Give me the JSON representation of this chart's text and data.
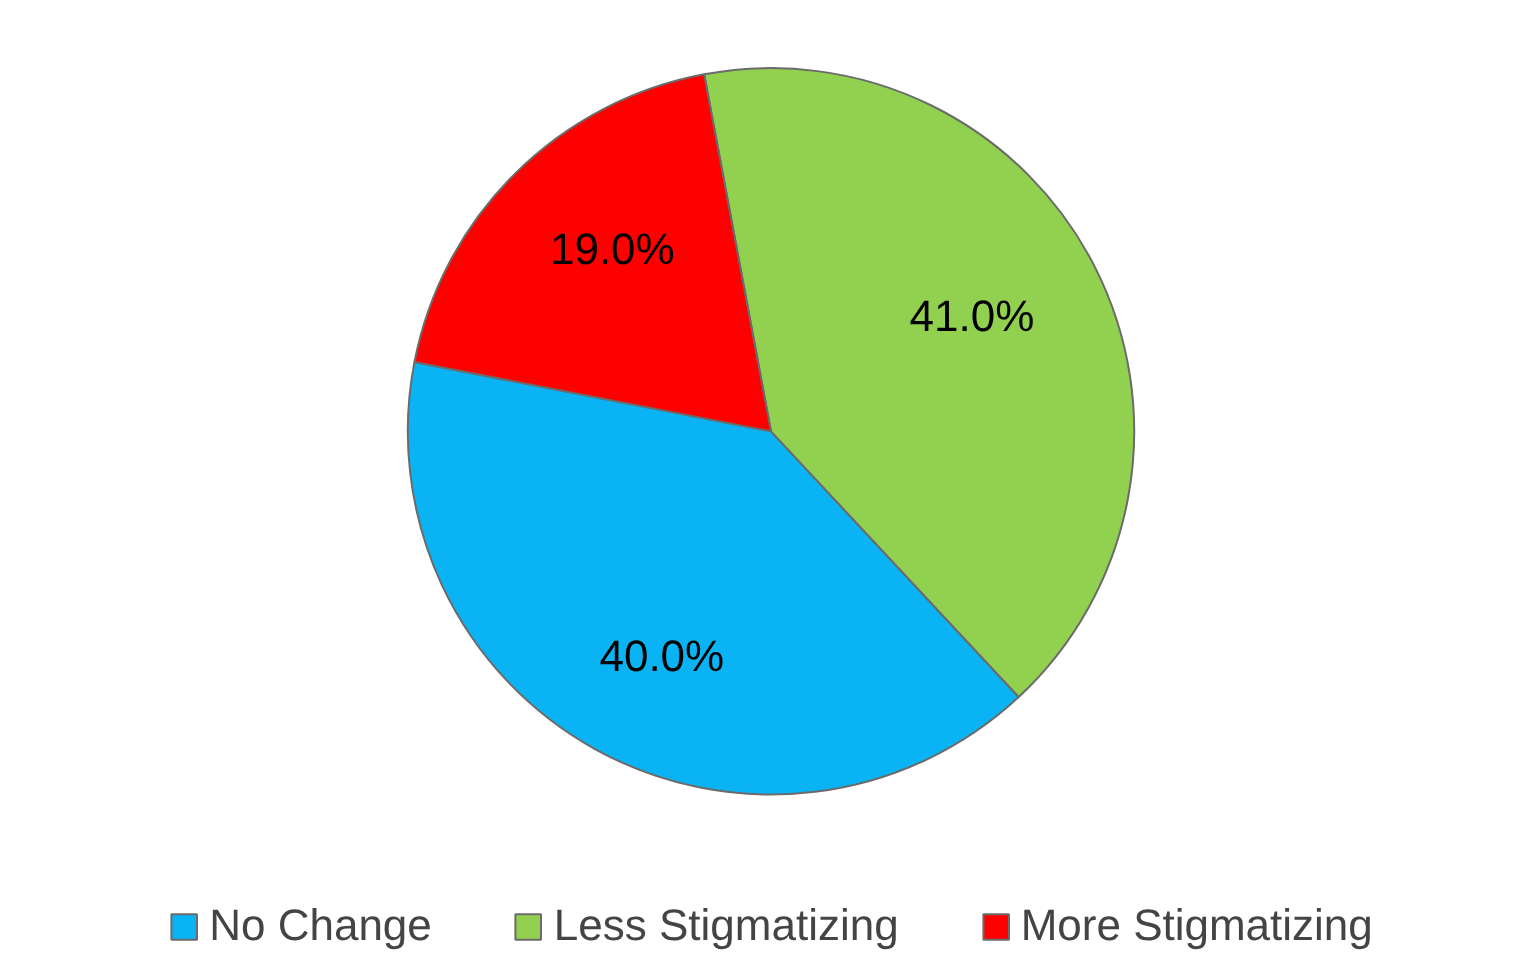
{
  "chart_data": {
    "type": "pie",
    "categories": [
      "No Change",
      "Less Stigmatizing",
      "More Stigmatizing"
    ],
    "values": [
      40,
      41,
      19
    ],
    "colors": [
      "#0ab4f4",
      "#92d050",
      "#ff0000"
    ],
    "value_labels": [
      "40.0%",
      "41.0%",
      "19.0%"
    ],
    "legend": "bottom"
  }
}
